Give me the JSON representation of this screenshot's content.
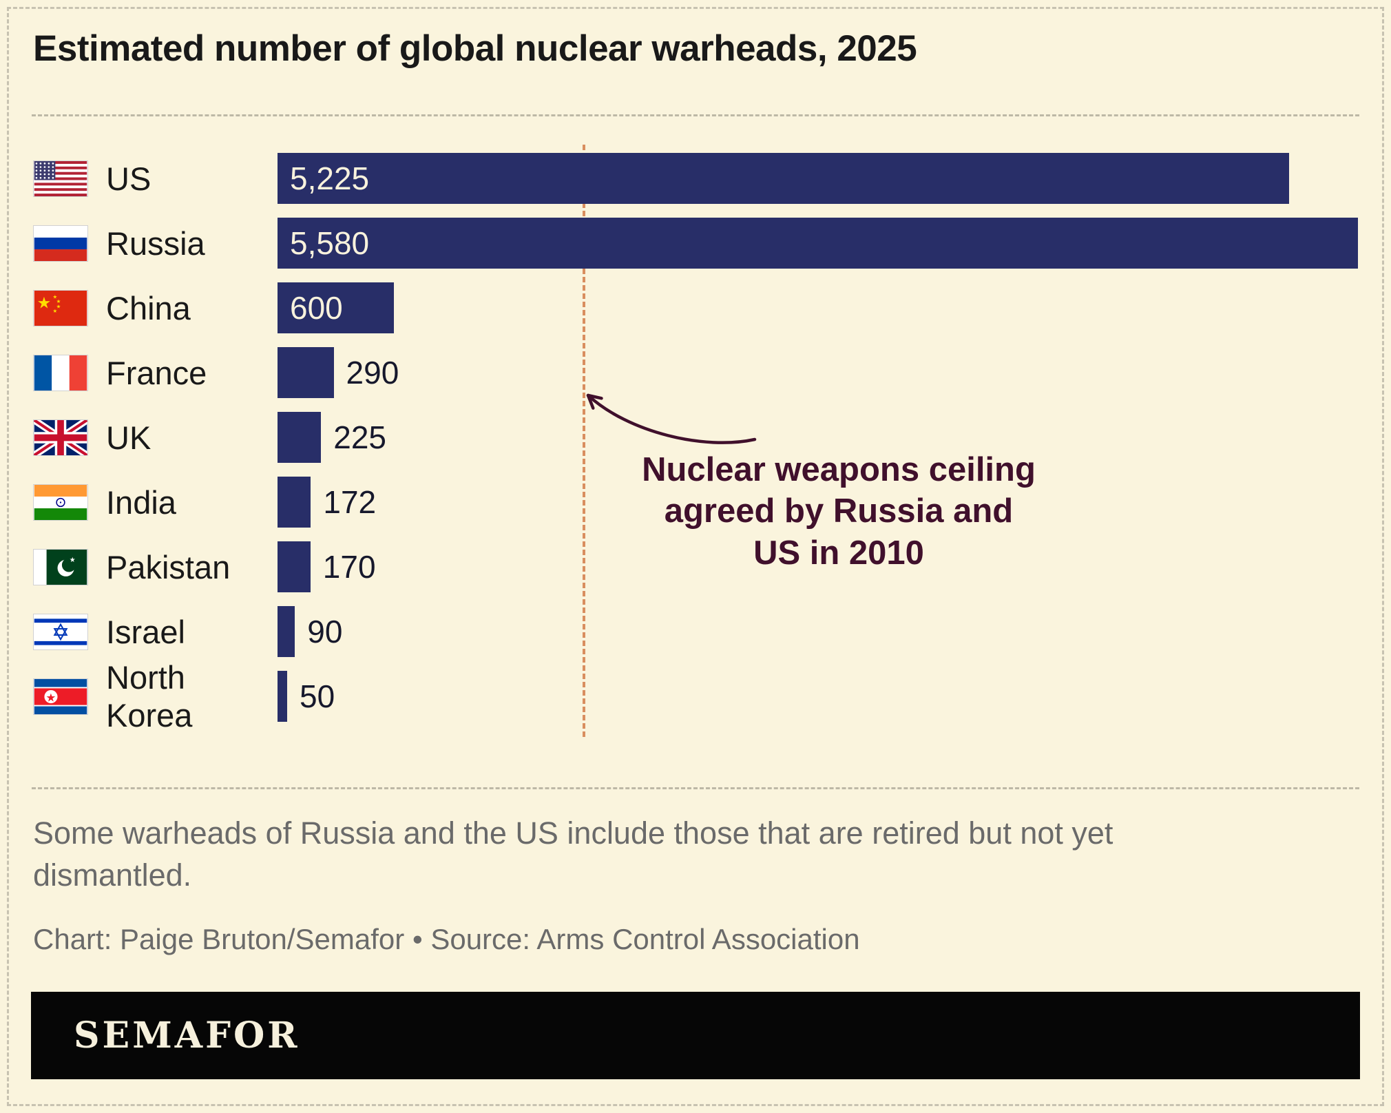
{
  "title": "Estimated number of global nuclear warheads, 2025",
  "chart_data": {
    "type": "bar",
    "orientation": "horizontal",
    "title": "Estimated number of global nuclear warheads, 2025",
    "categories": [
      "US",
      "Russia",
      "China",
      "France",
      "UK",
      "India",
      "Pakistan",
      "Israel",
      "North Korea"
    ],
    "values": [
      5225,
      5580,
      600,
      290,
      225,
      172,
      170,
      90,
      50
    ],
    "value_labels": [
      "5,225",
      "5,580",
      "600",
      "290",
      "225",
      "172",
      "170",
      "90",
      "50"
    ],
    "flag_icons": [
      "us-flag-icon",
      "russia-flag-icon",
      "china-flag-icon",
      "france-flag-icon",
      "uk-flag-icon",
      "india-flag-icon",
      "pakistan-flag-icon",
      "israel-flag-icon",
      "north-korea-flag-icon"
    ],
    "xlim": [
      0,
      5580
    ],
    "grid": false,
    "bar_color": "#282e68",
    "inside_value_color": "#f8f2dd",
    "outside_value_color": "#16182c",
    "ceiling_line": {
      "color": "#d98e5f",
      "label_color": "#40102c",
      "label_lines": [
        "Nuclear weapons ceiling",
        "agreed by Russia and",
        "US in 2010"
      ]
    }
  },
  "note": "Some warheads of Russia and the US include those that are retired but not yet dismantled.",
  "credit": "Chart: Paige Bruton/Semafor • Source: Arms Control Association",
  "footer": {
    "logo_text": "SEMAFOR"
  },
  "colors": {
    "background": "#faf4dd",
    "footer_background": "#060606",
    "logo_color": "#f6f0dc"
  }
}
